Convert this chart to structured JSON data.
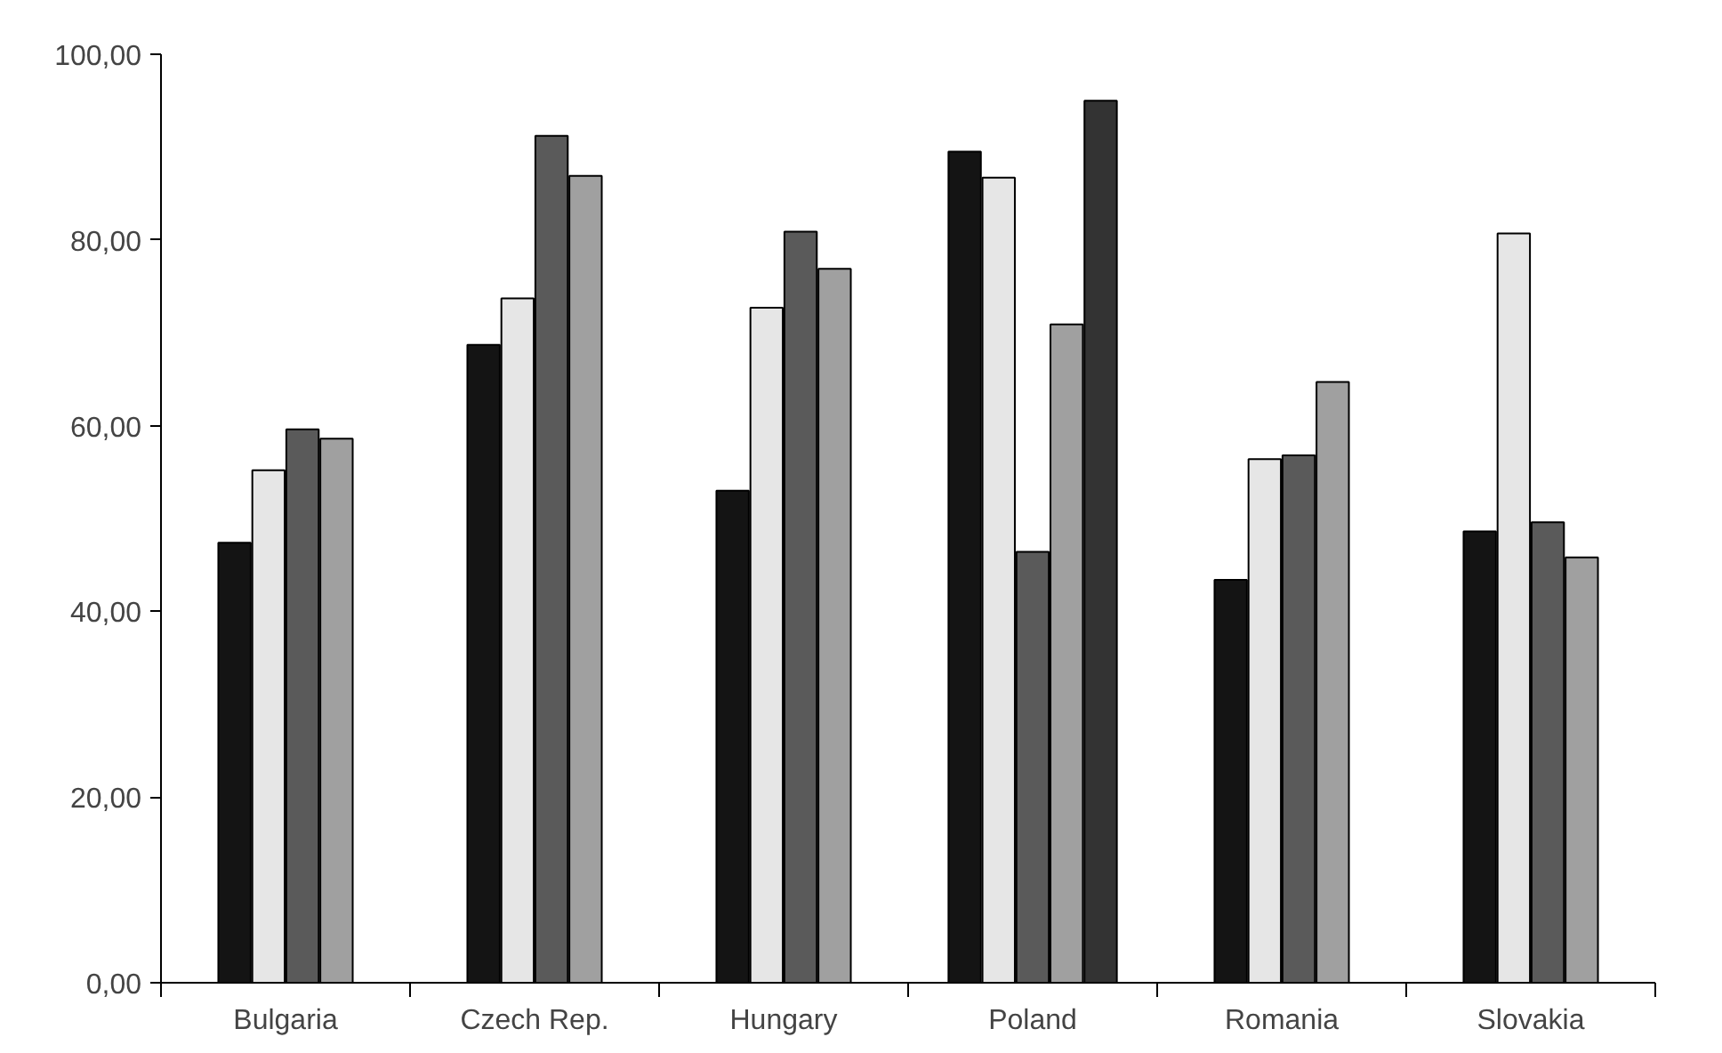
{
  "chart_data": {
    "type": "bar",
    "categories": [
      "Bulgaria",
      "Czech Rep.",
      "Hungary",
      "Poland",
      "Romania",
      "Slovakia"
    ],
    "series": [
      {
        "color": "#141414",
        "values": [
          47.4,
          68.7,
          53.0,
          89.5,
          43.4,
          48.6
        ]
      },
      {
        "color": "#e6e6e6",
        "values": [
          55.2,
          73.7,
          72.7,
          86.7,
          56.4,
          80.7
        ]
      },
      {
        "color": "#5a5a5a",
        "values": [
          59.6,
          91.2,
          80.9,
          46.4,
          56.8,
          49.6
        ]
      },
      {
        "color": "#a0a0a0",
        "values": [
          58.6,
          86.9,
          76.9,
          70.9,
          64.7,
          45.8
        ]
      },
      {
        "color": "#333333",
        "values": [
          null,
          null,
          null,
          95.0,
          null,
          null
        ]
      }
    ],
    "ylim": [
      0,
      100
    ],
    "yticks": [
      {
        "value": 0,
        "label": "0,00"
      },
      {
        "value": 20,
        "label": "20,00"
      },
      {
        "value": 40,
        "label": "40,00"
      },
      {
        "value": 60,
        "label": "60,00"
      },
      {
        "value": 80,
        "label": "80,00"
      },
      {
        "value": 100,
        "label": "100,00"
      }
    ],
    "grid": false
  }
}
